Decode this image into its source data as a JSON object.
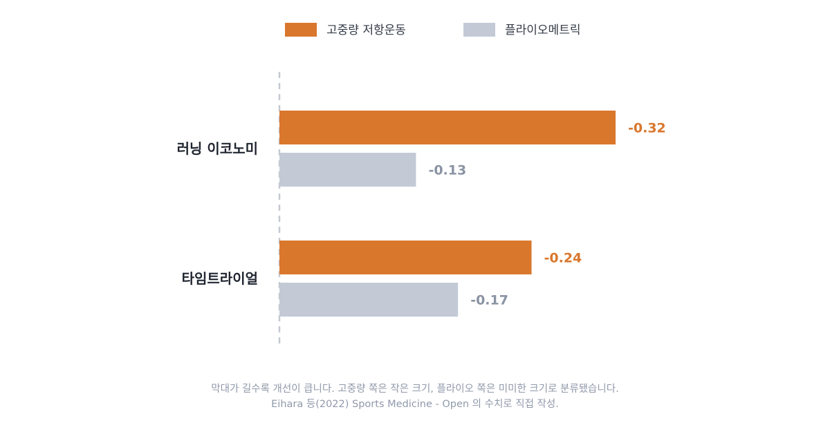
{
  "colors": {
    "series_0": "#d9772d",
    "series_1": "#c3cad6",
    "series_0_label": "#d9772d",
    "series_1_label": "#8a93a3",
    "baseline": "#c5c9d1"
  },
  "chart_data": {
    "type": "bar",
    "orientation": "horizontal",
    "categories": [
      "러닝 이코노미",
      "타임트라이얼"
    ],
    "series": [
      {
        "name": "고중량 저항운동",
        "values": [
          -0.32,
          -0.24
        ],
        "labels": [
          "-0.32",
          "-0.24"
        ]
      },
      {
        "name": "플라이오메트릭",
        "values": [
          -0.13,
          -0.17
        ],
        "labels": [
          "-0.13",
          "-0.17"
        ]
      }
    ],
    "legend_position": "top",
    "baseline_value": 0,
    "grid": false
  },
  "footnote": {
    "line1": "막대가 길수록 개선이 큽니다. 고중량 쪽은 작은 크기, 플라이오 쪽은 미미한 크기로 분류됐습니다.",
    "line2": "Eihara 등(2022) Sports Medicine - Open 의 수치로 직접 작성."
  }
}
